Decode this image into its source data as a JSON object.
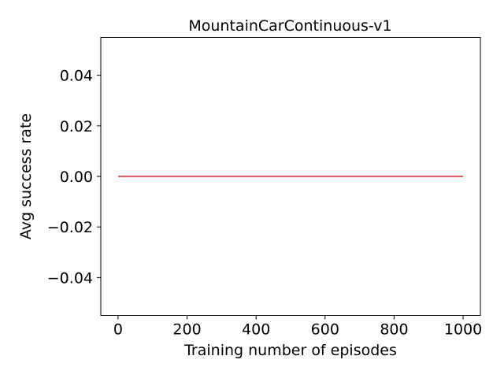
{
  "chart_data": {
    "type": "line",
    "title": "MountainCarContinuous-v1",
    "xlabel": "Training number of episodes",
    "ylabel": "Avg success rate",
    "xlim": [
      -50,
      1050
    ],
    "ylim": [
      -0.055,
      0.055
    ],
    "xticks": [
      0,
      200,
      400,
      600,
      800,
      1000
    ],
    "xtick_labels": [
      "0",
      "200",
      "400",
      "600",
      "800",
      "1000"
    ],
    "yticks": [
      -0.04,
      -0.02,
      0.0,
      0.02,
      0.04
    ],
    "ytick_labels": [
      "−0.04",
      "−0.02",
      "0.00",
      "0.02",
      "0.04"
    ],
    "grid": false,
    "series": [
      {
        "color": "#d62728",
        "x": [
          0,
          1000
        ],
        "y": [
          0.0,
          0.0
        ]
      }
    ]
  }
}
